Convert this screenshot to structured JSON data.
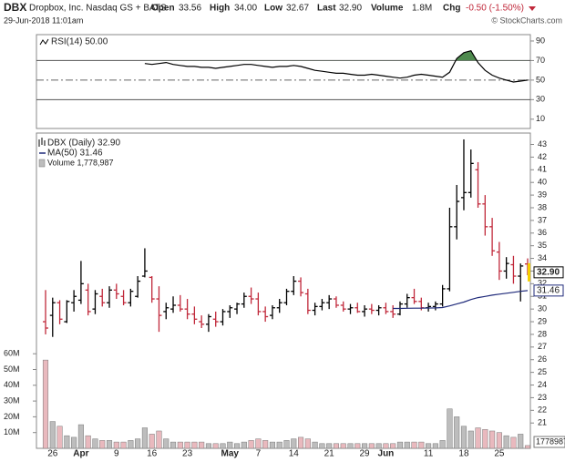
{
  "header": {
    "symbol": "DBX",
    "name": "Dropbox, Inc. Nasdaq GS + BATS",
    "quote": [
      [
        "Open",
        "33.56"
      ],
      [
        "High",
        "34.00"
      ],
      [
        "Low",
        "32.67"
      ],
      [
        "Last",
        "32.90"
      ],
      [
        "Volume",
        "1.8M"
      ],
      [
        "Chg",
        "-0.50 (-1.50%)"
      ]
    ],
    "date": "29-Jun-2018 11:01am",
    "source": "© StockCharts.com"
  },
  "chart_data": [
    {
      "type": "line",
      "series": [
        {
          "name": "RSI(14) 50.00",
          "color": "#000000",
          "values": [
            null,
            null,
            null,
            null,
            null,
            null,
            null,
            null,
            null,
            null,
            null,
            null,
            null,
            null,
            67,
            66,
            67,
            68,
            66,
            65,
            64,
            64,
            63,
            63,
            62,
            63,
            64,
            65,
            66,
            66,
            65,
            64,
            63,
            64,
            64,
            65,
            64,
            62,
            60,
            59,
            58,
            57,
            57,
            56,
            55,
            55,
            56,
            55,
            54,
            53,
            52,
            53,
            55,
            56,
            55,
            54,
            53,
            58,
            72,
            78,
            80,
            68,
            60,
            55,
            52,
            50,
            48,
            49,
            50
          ]
        }
      ],
      "ylim": [
        0.5,
        96.5
      ],
      "yticks": [
        10,
        30,
        50,
        70,
        90
      ],
      "hlines": [
        30,
        70
      ],
      "midline": 50,
      "fill_color": "#4e8a4e"
    },
    {
      "type": "ohlc",
      "categories": [
        null,
        "26",
        null,
        null,
        null,
        "Apr",
        null,
        null,
        null,
        null,
        "9",
        null,
        null,
        null,
        null,
        "16",
        null,
        null,
        null,
        null,
        "23",
        null,
        null,
        null,
        null,
        null,
        "May",
        null,
        null,
        null,
        "7",
        null,
        null,
        null,
        null,
        "14",
        null,
        null,
        null,
        null,
        "21",
        null,
        null,
        null,
        null,
        "29",
        null,
        null,
        "Jun",
        null,
        null,
        null,
        null,
        null,
        "11",
        null,
        null,
        null,
        null,
        "18",
        null,
        null,
        null,
        null,
        "25",
        null,
        null,
        null,
        null
      ],
      "ohlc": {
        "name": "DBX (Daily) 32.90",
        "up_color": "#000000",
        "down_color": "#c0283a",
        "open": [
          29.0,
          29.5,
          30.5,
          29.0,
          30.5,
          30.7,
          31.5,
          30.0,
          31.0,
          30.5,
          31.5,
          31.0,
          30.5,
          31.0,
          32.6,
          32.5,
          30.8,
          29.8,
          30.0,
          30.3,
          30.0,
          29.6,
          29.0,
          28.8,
          29.2,
          29.0,
          29.8,
          30.0,
          30.4,
          31.0,
          30.8,
          29.8,
          29.5,
          30.1,
          30.5,
          31.4,
          32.2,
          31.2,
          29.9,
          30.2,
          30.5,
          30.8,
          30.3,
          30.0,
          30.1,
          29.8,
          30.0,
          29.9,
          30.1,
          29.8,
          29.6,
          30.4,
          30.9,
          30.6,
          30.1,
          30.2,
          30.4,
          31.6,
          36.5,
          38.8,
          39.2,
          41.0,
          38.3,
          36.5,
          34.5,
          33.0,
          33.5,
          32.6,
          33.56
        ],
        "high": [
          31.5,
          30.9,
          30.7,
          30.7,
          31.5,
          33.8,
          32.0,
          31.5,
          31.6,
          31.8,
          32.0,
          31.5,
          31.6,
          32.6,
          34.8,
          32.6,
          31.8,
          30.5,
          31.0,
          31.1,
          30.8,
          30.2,
          29.5,
          29.6,
          29.8,
          30.0,
          30.3,
          30.5,
          31.3,
          31.7,
          31.3,
          30.2,
          30.3,
          30.8,
          31.6,
          32.6,
          32.5,
          31.6,
          30.5,
          30.8,
          31.1,
          31.0,
          30.6,
          30.4,
          30.5,
          30.3,
          30.4,
          30.3,
          30.5,
          30.3,
          30.6,
          31.2,
          31.6,
          30.9,
          30.5,
          30.6,
          31.9,
          38.0,
          39.8,
          43.4,
          42.6,
          41.6,
          39.0,
          37.2,
          35.3,
          34.1,
          34.2,
          33.6,
          34.0
        ],
        "low": [
          28.0,
          27.8,
          28.8,
          28.9,
          29.8,
          30.4,
          29.5,
          29.6,
          30.2,
          30.1,
          30.8,
          30.3,
          30.2,
          30.9,
          32.5,
          30.5,
          28.2,
          29.2,
          29.7,
          29.8,
          29.2,
          28.8,
          28.5,
          28.2,
          28.6,
          28.7,
          29.3,
          29.6,
          30.1,
          30.4,
          29.5,
          29.0,
          29.2,
          29.7,
          30.3,
          31.1,
          31.0,
          29.6,
          29.5,
          29.9,
          30.0,
          30.1,
          29.8,
          29.6,
          29.7,
          29.4,
          29.6,
          29.5,
          29.6,
          29.3,
          29.5,
          30.1,
          30.4,
          29.9,
          29.8,
          29.9,
          30.2,
          31.4,
          35.5,
          37.8,
          38.8,
          38.0,
          35.8,
          34.2,
          32.3,
          32.4,
          32.0,
          30.6,
          32.67
        ],
        "close": [
          28.5,
          30.5,
          29.2,
          30.6,
          31.0,
          32.0,
          29.8,
          31.2,
          30.5,
          31.5,
          31.2,
          30.5,
          31.4,
          32.2,
          33.0,
          30.8,
          29.5,
          30.1,
          30.3,
          30.0,
          29.6,
          29.2,
          28.8,
          29.4,
          29.0,
          29.8,
          30.1,
          30.4,
          31.0,
          30.8,
          29.8,
          29.4,
          30.1,
          30.5,
          31.4,
          32.2,
          31.3,
          29.9,
          30.2,
          30.5,
          30.8,
          30.3,
          30.0,
          30.1,
          29.8,
          30.0,
          29.9,
          30.1,
          29.8,
          29.6,
          30.4,
          30.9,
          30.6,
          30.1,
          30.2,
          30.4,
          31.6,
          36.5,
          38.5,
          39.2,
          41.5,
          38.3,
          36.5,
          34.6,
          33.0,
          33.6,
          32.6,
          33.4,
          32.9
        ]
      },
      "ma": {
        "name": "MA(50) 31.46",
        "color": "#1f2a7a",
        "values": [
          null,
          null,
          null,
          null,
          null,
          null,
          null,
          null,
          null,
          null,
          null,
          null,
          null,
          null,
          null,
          null,
          null,
          null,
          null,
          null,
          null,
          null,
          null,
          null,
          null,
          null,
          null,
          null,
          null,
          null,
          null,
          null,
          null,
          null,
          null,
          null,
          null,
          null,
          null,
          null,
          null,
          null,
          null,
          null,
          null,
          null,
          null,
          null,
          null,
          30.05,
          30.05,
          30.06,
          30.07,
          30.07,
          30.08,
          30.09,
          30.12,
          30.25,
          30.4,
          30.55,
          30.75,
          30.9,
          31.0,
          31.1,
          31.18,
          31.25,
          31.32,
          31.4,
          31.46
        ]
      },
      "volume": {
        "name": "Volume 1,778,987",
        "up_color": "#bdbdbd",
        "down_color": "#e9b9be",
        "values": [
          56,
          17,
          14,
          8,
          7,
          15,
          8,
          6,
          5,
          5,
          4,
          4,
          5,
          6,
          13,
          9,
          11,
          6,
          4,
          4,
          4,
          4,
          4,
          3,
          3,
          3,
          4,
          3,
          4,
          5,
          6,
          5,
          4,
          4,
          5,
          6,
          7,
          6,
          4,
          3,
          3,
          3,
          3,
          3,
          3,
          3,
          3,
          3,
          3,
          3,
          4,
          4,
          4,
          4,
          3,
          3,
          5,
          25,
          20,
          14,
          11,
          13,
          12,
          11,
          10,
          8,
          7,
          9,
          1.778987
        ],
        "last_label": "1778987"
      },
      "tags": [
        "32.90",
        "31.46"
      ],
      "ylim": [
        19,
        43.9
      ],
      "yticks": [
        21,
        22,
        23,
        24,
        25,
        26,
        27,
        28,
        29,
        30,
        31,
        32,
        33,
        34,
        35,
        36,
        37,
        38,
        39,
        40,
        41,
        42,
        43
      ],
      "y2lim": [
        0,
        200
      ],
      "y2ticks": [
        {
          "value": 10,
          "label": "10M"
        },
        {
          "value": 20,
          "label": "20M"
        },
        {
          "value": 30,
          "label": "30M"
        },
        {
          "value": 40,
          "label": "40M"
        },
        {
          "value": 50,
          "label": "50M"
        },
        {
          "value": 60,
          "label": "60M"
        }
      ]
    }
  ]
}
